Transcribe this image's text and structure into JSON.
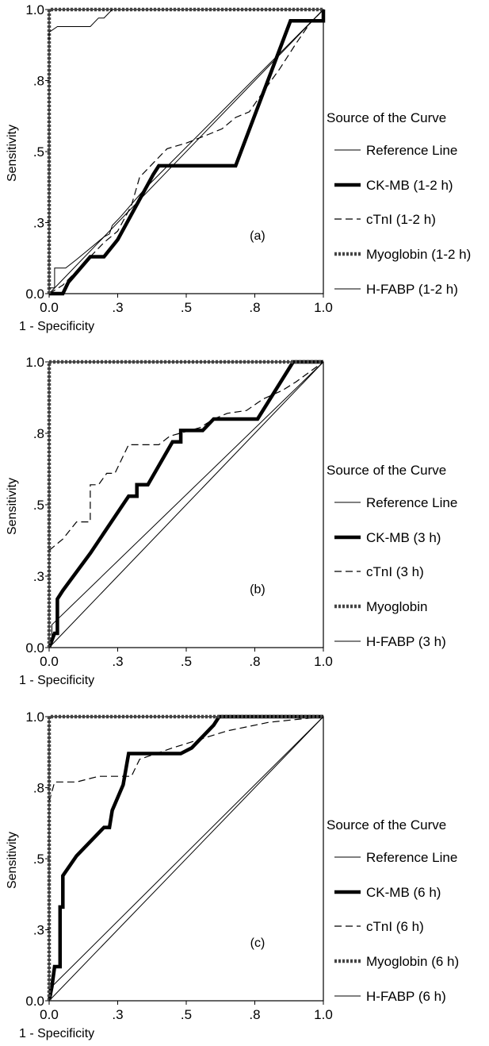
{
  "chart_data": [
    {
      "type": "line",
      "panel_label": "(a)",
      "xlabel": "1 - Specificity",
      "ylabel": "Sensitivity",
      "xlim": [
        0,
        1
      ],
      "ylim": [
        0,
        1
      ],
      "xticks": [
        {
          "v": 0,
          "label": "0.0"
        },
        {
          "v": 0.25,
          "label": ".3"
        },
        {
          "v": 0.5,
          "label": ".5"
        },
        {
          "v": 0.75,
          "label": ".8"
        },
        {
          "v": 1,
          "label": "1.0"
        }
      ],
      "yticks": [
        {
          "v": 0,
          "label": "0.0"
        },
        {
          "v": 0.25,
          "label": ".3"
        },
        {
          "v": 0.5,
          "label": ".5"
        },
        {
          "v": 0.75,
          "label": ".8"
        },
        {
          "v": 1,
          "label": "1.0"
        }
      ],
      "legend_title": "Source of the Curve",
      "series": [
        {
          "name": "Reference Line",
          "style": "thin",
          "points": [
            [
              0,
              0
            ],
            [
              1,
              1
            ]
          ]
        },
        {
          "name": "CK-MB (1-2 h)",
          "style": "thick",
          "points": [
            [
              0,
              0
            ],
            [
              0.05,
              0
            ],
            [
              0.07,
              0.04
            ],
            [
              0.15,
              0.13
            ],
            [
              0.2,
              0.13
            ],
            [
              0.25,
              0.19
            ],
            [
              0.38,
              0.42
            ],
            [
              0.4,
              0.45
            ],
            [
              0.68,
              0.45
            ],
            [
              0.88,
              0.96
            ],
            [
              1,
              0.96
            ],
            [
              1,
              1
            ]
          ]
        },
        {
          "name": "cTnI (1-2 h)",
          "style": "dashed",
          "points": [
            [
              0,
              0
            ],
            [
              0.05,
              0.03
            ],
            [
              0.1,
              0.08
            ],
            [
              0.15,
              0.13
            ],
            [
              0.2,
              0.18
            ],
            [
              0.25,
              0.22
            ],
            [
              0.3,
              0.31
            ],
            [
              0.33,
              0.41
            ],
            [
              0.38,
              0.46
            ],
            [
              0.43,
              0.51
            ],
            [
              0.5,
              0.53
            ],
            [
              0.58,
              0.56
            ],
            [
              0.63,
              0.58
            ],
            [
              0.68,
              0.62
            ],
            [
              0.73,
              0.64
            ],
            [
              0.78,
              0.71
            ],
            [
              0.84,
              0.79
            ],
            [
              0.9,
              0.88
            ],
            [
              0.95,
              0.95
            ],
            [
              1,
              1
            ]
          ]
        },
        {
          "name": "Myoglobin (1-2 h)",
          "style": "dotted",
          "points": [
            [
              0,
              0
            ],
            [
              0,
              1
            ],
            [
              1,
              1
            ]
          ]
        },
        {
          "name": "H-FABP (1-2 h)",
          "style": "thin",
          "points": [
            [
              0,
              0.02
            ],
            [
              0.02,
              0.02
            ],
            [
              0.02,
              0.09
            ],
            [
              0.06,
              0.09
            ],
            [
              0.1,
              0.12
            ],
            [
              0.15,
              0.16
            ],
            [
              0.2,
              0.2
            ],
            [
              0.22,
              0.21
            ],
            [
              0.23,
              0.24
            ],
            [
              0.26,
              0.27
            ],
            [
              0.35,
              0.37
            ],
            [
              1,
              1
            ]
          ]
        },
        {
          "name": "",
          "style": "thin",
          "points": [
            [
              0,
              0.89
            ],
            [
              0,
              0.92
            ],
            [
              0.03,
              0.94
            ],
            [
              0.15,
              0.94
            ],
            [
              0.18,
              0.97
            ],
            [
              0.2,
              0.97
            ],
            [
              0.23,
              1
            ]
          ]
        }
      ]
    },
    {
      "type": "line",
      "panel_label": "(b)",
      "xlabel": "1 - Specificity",
      "ylabel": "Sensitivity",
      "xlim": [
        0,
        1
      ],
      "ylim": [
        0,
        1
      ],
      "xticks": [
        {
          "v": 0,
          "label": "0.0"
        },
        {
          "v": 0.25,
          "label": ".3"
        },
        {
          "v": 0.5,
          "label": ".5"
        },
        {
          "v": 0.75,
          "label": ".8"
        },
        {
          "v": 1,
          "label": "1.0"
        }
      ],
      "yticks": [
        {
          "v": 0,
          "label": "0.0"
        },
        {
          "v": 0.25,
          "label": ".3"
        },
        {
          "v": 0.5,
          "label": ".5"
        },
        {
          "v": 0.75,
          "label": ".8"
        },
        {
          "v": 1,
          "label": "1.0"
        }
      ],
      "legend_title": "Source of the Curve",
      "series": [
        {
          "name": "Reference Line",
          "style": "thin",
          "points": [
            [
              0,
              0
            ],
            [
              1,
              1
            ]
          ]
        },
        {
          "name": "CK-MB (3 h)",
          "style": "thick",
          "points": [
            [
              0,
              0
            ],
            [
              0.02,
              0.05
            ],
            [
              0.03,
              0.05
            ],
            [
              0.03,
              0.17
            ],
            [
              0.05,
              0.2
            ],
            [
              0.15,
              0.33
            ],
            [
              0.29,
              0.53
            ],
            [
              0.32,
              0.53
            ],
            [
              0.32,
              0.57
            ],
            [
              0.36,
              0.57
            ],
            [
              0.45,
              0.72
            ],
            [
              0.48,
              0.72
            ],
            [
              0.48,
              0.76
            ],
            [
              0.56,
              0.76
            ],
            [
              0.6,
              0.8
            ],
            [
              0.76,
              0.8
            ],
            [
              0.89,
              1
            ],
            [
              1,
              1
            ]
          ]
        },
        {
          "name": "cTnI (3 h)",
          "style": "dashed",
          "points": [
            [
              0,
              0.34
            ],
            [
              0.05,
              0.38
            ],
            [
              0.1,
              0.44
            ],
            [
              0.15,
              0.44
            ],
            [
              0.15,
              0.57
            ],
            [
              0.18,
              0.57
            ],
            [
              0.21,
              0.61
            ],
            [
              0.24,
              0.61
            ],
            [
              0.27,
              0.67
            ],
            [
              0.29,
              0.71
            ],
            [
              0.4,
              0.71
            ],
            [
              0.44,
              0.74
            ],
            [
              0.55,
              0.77
            ],
            [
              0.6,
              0.8
            ],
            [
              0.65,
              0.82
            ],
            [
              0.72,
              0.83
            ],
            [
              0.78,
              0.87
            ],
            [
              0.85,
              0.9
            ],
            [
              0.9,
              0.93
            ],
            [
              1,
              1
            ]
          ]
        },
        {
          "name": "Myoglobin",
          "style": "dotted",
          "points": [
            [
              0,
              0
            ],
            [
              0,
              1
            ],
            [
              1,
              1
            ]
          ]
        },
        {
          "name": "H-FABP (3 h)",
          "style": "thin",
          "points": [
            [
              0,
              0
            ],
            [
              0.01,
              0.01
            ],
            [
              0.01,
              0.04
            ],
            [
              0.01,
              0.08
            ],
            [
              1,
              1
            ]
          ]
        }
      ]
    },
    {
      "type": "line",
      "panel_label": "(c)",
      "xlabel": "1 - Specificity",
      "ylabel": "Sensitivity",
      "xlim": [
        0,
        1
      ],
      "ylim": [
        0,
        1
      ],
      "xticks": [
        {
          "v": 0,
          "label": "0.0"
        },
        {
          "v": 0.25,
          "label": ".3"
        },
        {
          "v": 0.5,
          "label": ".5"
        },
        {
          "v": 0.75,
          "label": ".8"
        },
        {
          "v": 1,
          "label": "1.0"
        }
      ],
      "yticks": [
        {
          "v": 0,
          "label": "0.0"
        },
        {
          "v": 0.25,
          "label": ".3"
        },
        {
          "v": 0.5,
          "label": ".5"
        },
        {
          "v": 0.75,
          "label": ".8"
        },
        {
          "v": 1,
          "label": "1.0"
        }
      ],
      "legend_title": "Source of the Curve",
      "series": [
        {
          "name": "Reference Line",
          "style": "thin",
          "points": [
            [
              0,
              0
            ],
            [
              1,
              1
            ]
          ]
        },
        {
          "name": "CK-MB (6 h)",
          "style": "thick",
          "points": [
            [
              0,
              0
            ],
            [
              0.01,
              0.05
            ],
            [
              0.02,
              0.12
            ],
            [
              0.04,
              0.12
            ],
            [
              0.04,
              0.33
            ],
            [
              0.05,
              0.33
            ],
            [
              0.05,
              0.44
            ],
            [
              0.1,
              0.51
            ],
            [
              0.2,
              0.61
            ],
            [
              0.22,
              0.61
            ],
            [
              0.23,
              0.67
            ],
            [
              0.27,
              0.76
            ],
            [
              0.29,
              0.87
            ],
            [
              0.37,
              0.87
            ],
            [
              0.48,
              0.87
            ],
            [
              0.52,
              0.89
            ],
            [
              0.55,
              0.92
            ],
            [
              0.6,
              0.97
            ],
            [
              0.62,
              1
            ],
            [
              1,
              1
            ]
          ]
        },
        {
          "name": "cTnI (6 h)",
          "style": "dashed",
          "points": [
            [
              0,
              0.7
            ],
            [
              0.02,
              0.77
            ],
            [
              0.1,
              0.77
            ],
            [
              0.18,
              0.79
            ],
            [
              0.3,
              0.79
            ],
            [
              0.33,
              0.85
            ],
            [
              0.45,
              0.89
            ],
            [
              0.55,
              0.92
            ],
            [
              0.65,
              0.95
            ],
            [
              0.8,
              0.98
            ],
            [
              1,
              1
            ]
          ]
        },
        {
          "name": "Myoglobin (6 h)",
          "style": "dotted",
          "points": [
            [
              0,
              0
            ],
            [
              0,
              1
            ],
            [
              1,
              1
            ]
          ]
        },
        {
          "name": "H-FABP (6 h)",
          "style": "thin",
          "points": [
            [
              0,
              0
            ],
            [
              0.01,
              0.02
            ],
            [
              0.01,
              0.05
            ],
            [
              1,
              1
            ]
          ]
        }
      ]
    }
  ]
}
